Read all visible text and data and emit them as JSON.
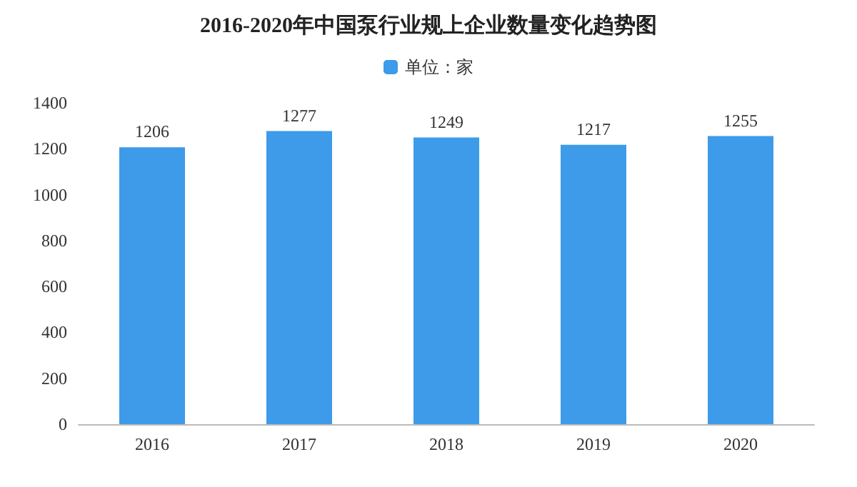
{
  "chart_data": {
    "type": "bar",
    "title": "2016-2020年中国泵行业规上企业数量变化趋势图",
    "categories": [
      "2016",
      "2017",
      "2018",
      "2019",
      "2020"
    ],
    "series": [
      {
        "name": "单位：家",
        "color": "#3d9be9",
        "values": [
          1206,
          1277,
          1249,
          1217,
          1255
        ]
      }
    ],
    "ylim": [
      0,
      1400
    ],
    "yticks": [
      0,
      200,
      400,
      600,
      800,
      1000,
      1200,
      1400
    ],
    "grid": false,
    "legend": "top",
    "data_labels": true
  }
}
